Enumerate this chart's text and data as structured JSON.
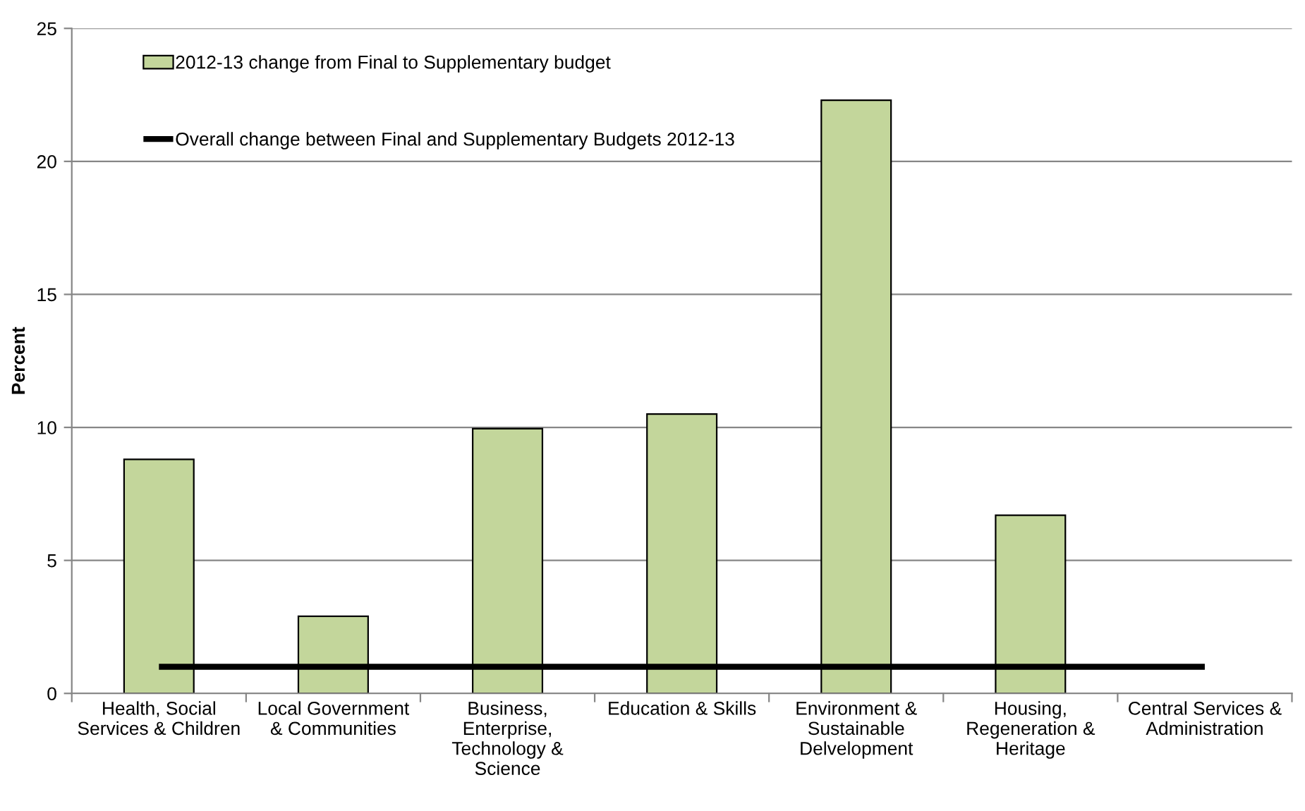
{
  "chart_data": {
    "type": "bar",
    "ylabel": "Percent",
    "categories": [
      "Health, Social\nServices & Children",
      "Local Government\n& Communities",
      "Business,\nEnterprise,\nTechnology &\nScience",
      "Education & Skills",
      "Environment &\nSustainable\nDelvelopment",
      "Housing,\nRegeneration &\nHeritage",
      "Central Services &\nAdministration"
    ],
    "series": [
      {
        "name": "2012-13 change from Final to Supplementary budget",
        "color": "#c3d69b",
        "values": [
          8.8,
          2.9,
          9.95,
          10.5,
          22.3,
          6.7,
          null
        ]
      },
      {
        "name": "Overall change between Final and Supplementary Budgets 2012-13",
        "type": "line",
        "color": "#000000",
        "values": [
          1.0,
          1.0,
          1.0,
          1.0,
          1.0,
          1.0,
          1.0
        ]
      }
    ],
    "ylim": [
      0,
      25
    ],
    "yticks": [
      0,
      5,
      10,
      15,
      20,
      25
    ],
    "grid": "y",
    "legend": "top left"
  }
}
